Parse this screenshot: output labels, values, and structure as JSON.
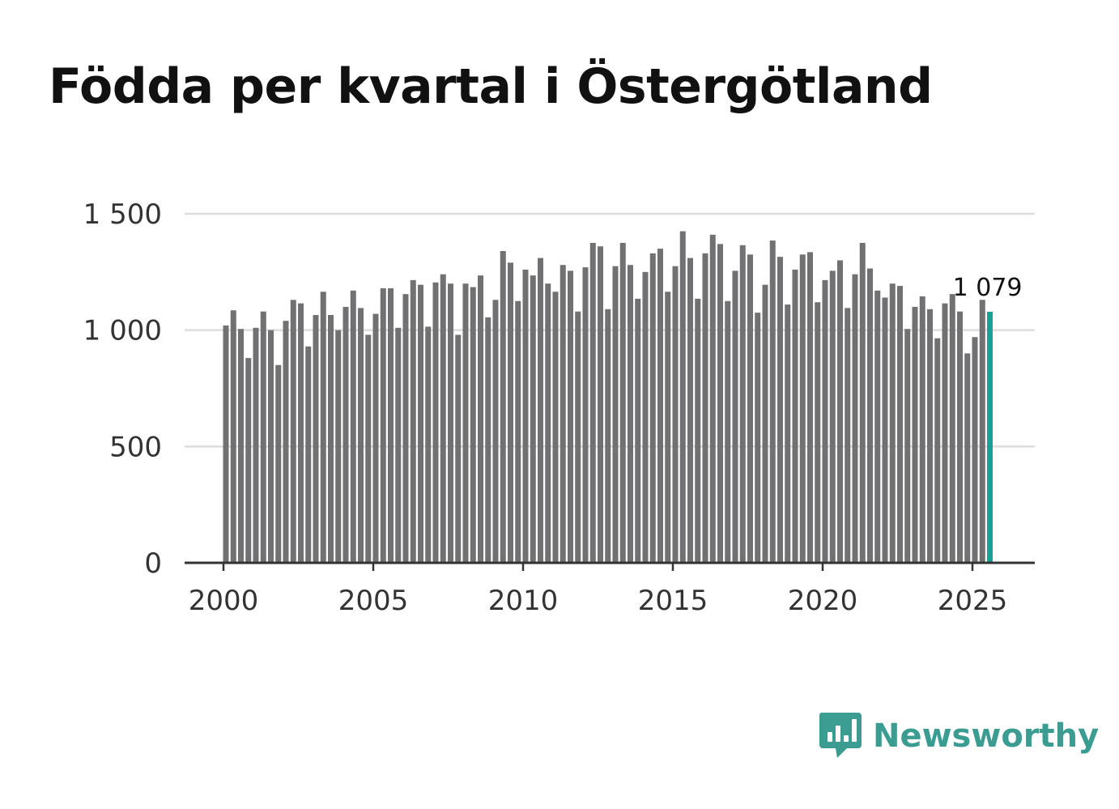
{
  "chart_data": {
    "type": "bar",
    "title": "Födda per kvartal i Östergötland",
    "xlabel": "",
    "ylabel": "",
    "x_start_year": 2000,
    "quarters_per_year": 4,
    "xlim": [
      2000,
      2027
    ],
    "ylim": [
      0,
      1500
    ],
    "y_ticks": [
      0,
      500,
      1000,
      1500
    ],
    "y_tick_labels": [
      "0",
      "500",
      "1 000",
      "1 500"
    ],
    "x_ticks": [
      2000,
      2005,
      2010,
      2015,
      2020,
      2025
    ],
    "x_tick_labels": [
      "2000",
      "2005",
      "2010",
      "2015",
      "2020",
      "2025"
    ],
    "values": [
      1020,
      1085,
      1005,
      880,
      1010,
      1080,
      1000,
      850,
      1040,
      1130,
      1115,
      930,
      1065,
      1165,
      1065,
      1000,
      1100,
      1170,
      1095,
      980,
      1070,
      1180,
      1180,
      1010,
      1155,
      1215,
      1195,
      1015,
      1205,
      1240,
      1200,
      980,
      1200,
      1185,
      1235,
      1055,
      1130,
      1340,
      1290,
      1125,
      1260,
      1235,
      1310,
      1200,
      1165,
      1280,
      1255,
      1080,
      1270,
      1375,
      1360,
      1090,
      1275,
      1375,
      1280,
      1135,
      1250,
      1330,
      1350,
      1165,
      1275,
      1425,
      1310,
      1135,
      1330,
      1410,
      1370,
      1125,
      1255,
      1365,
      1325,
      1075,
      1195,
      1385,
      1315,
      1110,
      1260,
      1325,
      1335,
      1120,
      1215,
      1255,
      1300,
      1095,
      1240,
      1375,
      1265,
      1170,
      1140,
      1200,
      1190,
      1005,
      1100,
      1145,
      1090,
      965,
      1115,
      1155,
      1080,
      900,
      970,
      1130,
      1079
    ],
    "highlight_index": 102,
    "highlight_label": "1 079",
    "bar_color": "#717073",
    "highlight_color": "#17a296",
    "grid": true,
    "legend": "none"
  },
  "brand": {
    "name": "Newsworthy",
    "color": "#3b9c92",
    "icon": "newsworthy-logo-icon"
  }
}
